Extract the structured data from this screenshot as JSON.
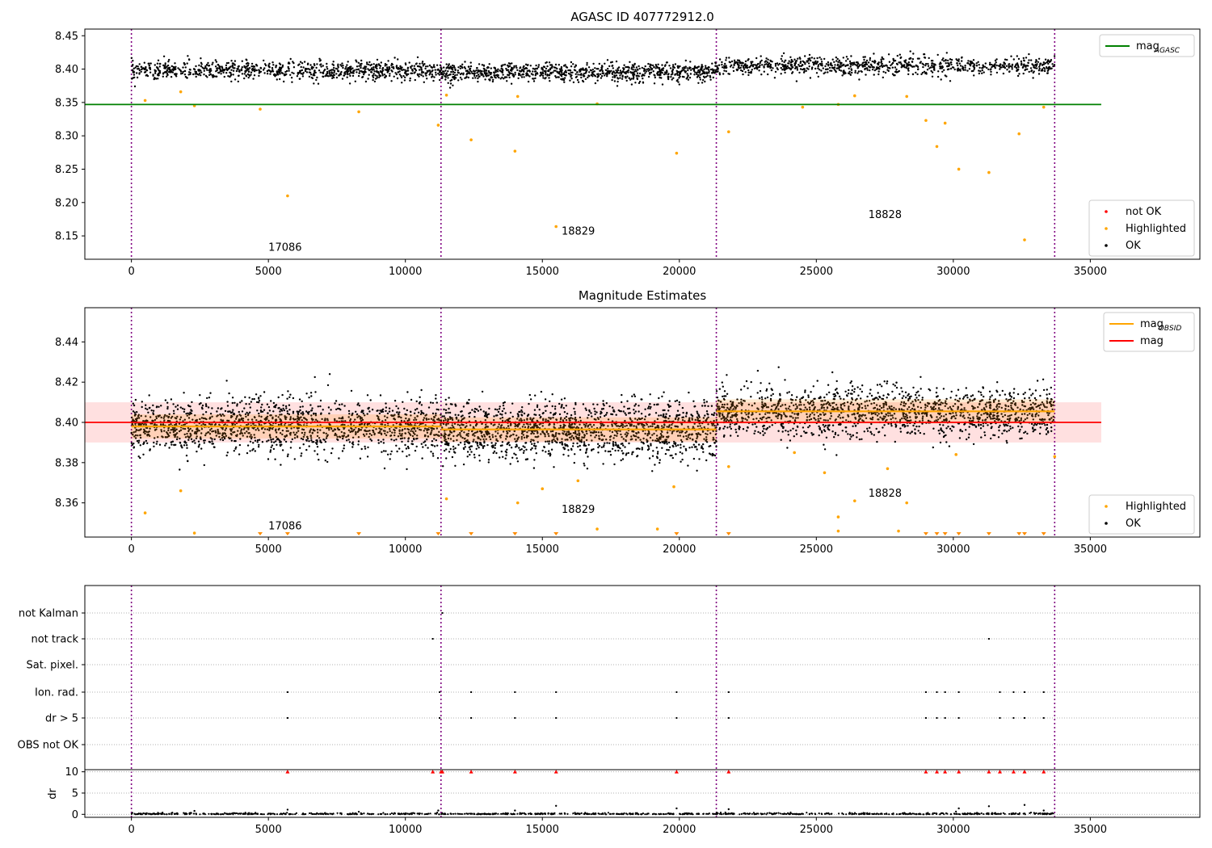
{
  "chart_data": [
    {
      "type": "scatter",
      "title": "AGASC ID 407772912.0",
      "xlim": [
        -1700,
        39000
      ],
      "ylim": [
        8.115,
        8.46
      ],
      "xticks": [
        0,
        5000,
        10000,
        15000,
        20000,
        25000,
        30000,
        35000
      ],
      "xtick_labels": [
        "0",
        "5000",
        "10000",
        "15000",
        "20000",
        "25000",
        "30000",
        "35000"
      ],
      "yticks": [
        8.15,
        8.2,
        8.25,
        8.3,
        8.35,
        8.4,
        8.45
      ],
      "ytick_labels": [
        "8.15",
        "8.20",
        "8.25",
        "8.30",
        "8.35",
        "8.40",
        "8.45"
      ],
      "obs_boundaries": [
        0,
        11300,
        21350,
        33700
      ],
      "obs_labels": [
        {
          "text": "17086",
          "x": 5000,
          "y": 8.128
        },
        {
          "text": "18829",
          "x": 15700,
          "y": 8.152
        },
        {
          "text": "18828",
          "x": 26900,
          "y": 8.177
        }
      ],
      "hlines": [
        {
          "name": "mag_AGASC",
          "value": 8.347,
          "x_range": [
            -1700,
            35400
          ],
          "color": "#008000"
        }
      ],
      "ok_segments": [
        {
          "x_range": [
            0,
            11300
          ],
          "center": 8.398,
          "spread": 0.022
        },
        {
          "x_range": [
            11300,
            21350
          ],
          "center": 8.395,
          "spread": 0.022
        },
        {
          "x_range": [
            21350,
            33700
          ],
          "center": 8.405,
          "spread": 0.022
        }
      ],
      "highlighted_points": [
        [
          500,
          8.353
        ],
        [
          1800,
          8.366
        ],
        [
          2300,
          8.345
        ],
        [
          4700,
          8.34
        ],
        [
          5700,
          8.21
        ],
        [
          8300,
          8.336
        ],
        [
          11200,
          8.316
        ],
        [
          11500,
          8.361
        ],
        [
          12400,
          8.294
        ],
        [
          14000,
          8.277
        ],
        [
          14100,
          8.359
        ],
        [
          15500,
          8.164
        ],
        [
          17000,
          8.348
        ],
        [
          19900,
          8.274
        ],
        [
          21800,
          8.306
        ],
        [
          24500,
          8.343
        ],
        [
          25800,
          8.347
        ],
        [
          26400,
          8.36
        ],
        [
          28300,
          8.359
        ],
        [
          29000,
          8.323
        ],
        [
          29400,
          8.284
        ],
        [
          29700,
          8.319
        ],
        [
          30200,
          8.25
        ],
        [
          31300,
          8.245
        ],
        [
          32400,
          8.303
        ],
        [
          32600,
          8.144
        ],
        [
          33300,
          8.343
        ]
      ],
      "legend": {
        "upper": [
          {
            "label": "mag",
            "sub": "AGASC",
            "color": "#008000",
            "kind": "line"
          }
        ],
        "lower": [
          {
            "label": "not OK",
            "color": "#ff0000",
            "kind": "dot"
          },
          {
            "label": "Highlighted",
            "color": "#ffa500",
            "kind": "dot"
          },
          {
            "label": "OK",
            "color": "#000000",
            "kind": "dot"
          }
        ]
      }
    },
    {
      "type": "scatter",
      "title": "Magnitude Estimates",
      "xlim": [
        -1700,
        39000
      ],
      "ylim": [
        8.343,
        8.457
      ],
      "xticks": [
        0,
        5000,
        10000,
        15000,
        20000,
        25000,
        30000,
        35000
      ],
      "xtick_labels": [
        "0",
        "5000",
        "10000",
        "15000",
        "20000",
        "25000",
        "30000",
        "35000"
      ],
      "yticks": [
        8.36,
        8.38,
        8.4,
        8.42,
        8.44
      ],
      "ytick_labels": [
        "8.36",
        "8.38",
        "8.40",
        "8.42",
        "8.44"
      ],
      "obs_boundaries": [
        0,
        11300,
        21350,
        33700
      ],
      "obs_labels": [
        {
          "text": "17086",
          "x": 5000,
          "y": 8.3468
        },
        {
          "text": "18829",
          "x": 15700,
          "y": 8.355
        },
        {
          "text": "18828",
          "x": 26900,
          "y": 8.363
        }
      ],
      "mag_line": {
        "name": "mag",
        "value": 8.4,
        "band": [
          8.39,
          8.41
        ],
        "x_range": [
          -1700,
          35400
        ],
        "color": "#ff0000"
      },
      "mag_obsid": [
        {
          "x_range": [
            0,
            11300
          ],
          "value": 8.398
        },
        {
          "x_range": [
            11300,
            21350
          ],
          "value": 8.3965
        },
        {
          "x_range": [
            21350,
            33700
          ],
          "value": 8.4055
        }
      ],
      "ok_segments": [
        {
          "x_range": [
            0,
            11300
          ],
          "center": 8.398,
          "spread": 0.022
        },
        {
          "x_range": [
            11300,
            21350
          ],
          "center": 8.396,
          "spread": 0.022
        },
        {
          "x_range": [
            21350,
            33700
          ],
          "center": 8.405,
          "spread": 0.02
        }
      ],
      "highlighted_points": [
        [
          500,
          8.355
        ],
        [
          1800,
          8.366
        ],
        [
          2300,
          8.345
        ],
        [
          11500,
          8.362
        ],
        [
          14100,
          8.36
        ],
        [
          15000,
          8.367
        ],
        [
          16300,
          8.371
        ],
        [
          17000,
          8.347
        ],
        [
          19200,
          8.347
        ],
        [
          19800,
          8.368
        ],
        [
          21800,
          8.378
        ],
        [
          24200,
          8.385
        ],
        [
          25300,
          8.375
        ],
        [
          25800,
          8.346
        ],
        [
          25800,
          8.353
        ],
        [
          26400,
          8.361
        ],
        [
          27600,
          8.377
        ],
        [
          28300,
          8.36
        ],
        [
          28000,
          8.346
        ],
        [
          30100,
          8.384
        ],
        [
          33700,
          8.383
        ]
      ],
      "clipped_low_x": [
        4700,
        5700,
        8300,
        11200,
        12400,
        14000,
        15500,
        19900,
        21800,
        29000,
        29400,
        29700,
        30200,
        31300,
        32400,
        32600,
        33300
      ],
      "legend": {
        "upper": [
          {
            "label": "mag",
            "sub": "OBSID",
            "color": "#ffa500",
            "kind": "line"
          },
          {
            "label": "mag",
            "sub": "",
            "color": "#ff0000",
            "kind": "line"
          }
        ],
        "lower": [
          {
            "label": "Highlighted",
            "color": "#ffa500",
            "kind": "dot"
          },
          {
            "label": "OK",
            "color": "#000000",
            "kind": "dot"
          }
        ]
      }
    },
    {
      "type": "scatter",
      "title": "",
      "xlim": [
        -1700,
        39000
      ],
      "xticks": [
        0,
        5000,
        10000,
        15000,
        20000,
        25000,
        30000,
        35000
      ],
      "xtick_labels": [
        "0",
        "5000",
        "10000",
        "15000",
        "20000",
        "25000",
        "30000",
        "35000"
      ],
      "obs_boundaries": [
        0,
        11300,
        21350,
        33700
      ],
      "flag_rows": [
        "not Kalman",
        "not track",
        "Sat. pixel.",
        "Ion. rad.",
        "dr > 5",
        "OBS not OK"
      ],
      "flag_points": {
        "not Kalman": [
          11350
        ],
        "not track": [
          11000,
          31300
        ],
        "Sat. pixel.": [],
        "Ion. rad.": [
          5700,
          11250,
          12400,
          14000,
          15500,
          19900,
          21800,
          29000,
          29400,
          29700,
          30200,
          31700,
          32200,
          32600,
          33300
        ],
        "dr > 5": [
          5700,
          11250,
          12400,
          14000,
          15500,
          19900,
          21800,
          29000,
          29400,
          29700,
          30200,
          31700,
          32200,
          32600,
          33300
        ],
        "OBS not OK": []
      },
      "dr_ylabel": "dr",
      "dr_ylim": [
        -0.7,
        10.5
      ],
      "dr_yticks": [
        0,
        5,
        10
      ],
      "dr_ytick_labels": [
        "0",
        "5",
        "10"
      ],
      "dr_clipped_x": [
        5700,
        11000,
        11300,
        11350,
        12400,
        14000,
        15500,
        19900,
        21800,
        29000,
        29400,
        29700,
        30200,
        31300,
        31700,
        32200,
        32600,
        33300
      ],
      "dr_spikes": [
        [
          2300,
          0.8
        ],
        [
          5700,
          1.1
        ],
        [
          8300,
          0.6
        ],
        [
          11200,
          0.9
        ],
        [
          14000,
          0.9
        ],
        [
          15500,
          2.0
        ],
        [
          19900,
          1.4
        ],
        [
          21800,
          1.2
        ],
        [
          30200,
          1.4
        ],
        [
          31300,
          1.9
        ],
        [
          32600,
          2.2
        ],
        [
          33300,
          0.9
        ]
      ]
    }
  ]
}
